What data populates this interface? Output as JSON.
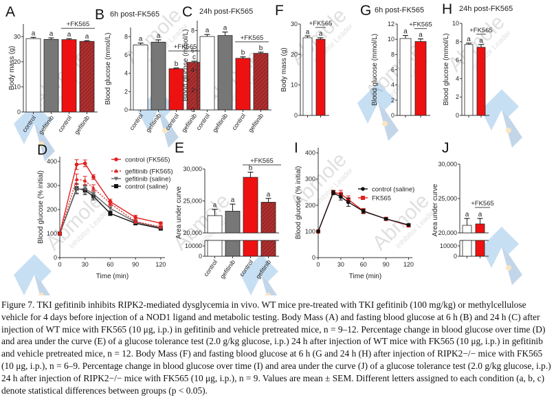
{
  "figure": {
    "colors": {
      "control": "#ffffff",
      "gefitinib": "#777777",
      "fk_control": "#ee1111",
      "fk_gefitinib": "#aa2a2a",
      "red_line": "#e02020",
      "black_line": "#111111",
      "gray_line": "#666666"
    },
    "fk_label": "+FK565",
    "panels_bar": [
      {
        "id": "A",
        "letter": "A",
        "title": "",
        "ylabel": "Body mass (g)",
        "ylim": [
          0,
          35
        ],
        "yticks": [
          0,
          10,
          20,
          30
        ],
        "categories": [
          "control",
          "gefitinib",
          "control",
          "gefitinib"
        ],
        "groups": [
          "control",
          "gefitinib",
          "fk_control",
          "fk_gefitinib"
        ],
        "values": [
          29.2,
          28.9,
          28.8,
          28.1
        ],
        "errors": [
          0.5,
          0.6,
          0.4,
          0.3
        ],
        "letters": [
          "a",
          "a",
          "a",
          "a"
        ],
        "fk_span": [
          2,
          3
        ],
        "xticks_rotated": true
      },
      {
        "id": "B",
        "letter": "B",
        "title": "6h post-FK565",
        "ylabel": "Blood glucose (mmol/L)",
        "ylim": [
          0,
          9
        ],
        "yticks": [
          0,
          2,
          4,
          6,
          8
        ],
        "categories": [
          "control",
          "gefitinib",
          "control",
          "gefitinib"
        ],
        "groups": [
          "control",
          "gefitinib",
          "fk_control",
          "fk_gefitinib"
        ],
        "values": [
          7.1,
          7.4,
          4.5,
          5.2
        ],
        "errors": [
          0.2,
          0.25,
          0.08,
          0.12
        ],
        "letters": [
          "a",
          "a",
          "b",
          "c"
        ],
        "fk_span": [
          2,
          3
        ],
        "xticks_rotated": true
      },
      {
        "id": "C",
        "letter": "C",
        "title": "24h post-FK565",
        "ylabel": "Blood glucose (mmol/L)",
        "ylim": [
          0,
          9
        ],
        "yticks": [
          0,
          2,
          4,
          6,
          8
        ],
        "categories": [
          "control",
          "gefitinib",
          "control",
          "gefitinib"
        ],
        "groups": [
          "control",
          "gefitinib",
          "fk_control",
          "fk_gefitinib"
        ],
        "values": [
          7.4,
          7.5,
          5.2,
          5.7
        ],
        "errors": [
          0.2,
          0.35,
          0.15,
          0.12
        ],
        "letters": [
          "a",
          "a",
          "b",
          "b"
        ],
        "fk_span": [
          2,
          3
        ],
        "xticks_rotated": true
      },
      {
        "id": "F",
        "letter": "F",
        "title": "",
        "ylabel": "Body mass (g)",
        "ylim": [
          0,
          30
        ],
        "yticks": [
          0,
          10,
          20,
          30
        ],
        "categories": [
          "",
          ""
        ],
        "groups": [
          "control",
          "fk_control"
        ],
        "values": [
          25.5,
          25.0
        ],
        "errors": [
          0.6,
          0.5
        ],
        "letters": [
          "a",
          "a"
        ],
        "fk_span": [
          1,
          1
        ],
        "xticks_rotated": false
      },
      {
        "id": "G",
        "letter": "G",
        "title": "6h post-FK565",
        "ylabel": "Blood glucose (mmol/L)",
        "ylim": [
          0,
          12
        ],
        "yticks": [
          0,
          2,
          4,
          6,
          8,
          10,
          12
        ],
        "categories": [
          "",
          ""
        ],
        "groups": [
          "control",
          "fk_control"
        ],
        "values": [
          10.1,
          9.7
        ],
        "errors": [
          0.4,
          0.35
        ],
        "letters": [
          "a",
          "a"
        ],
        "fk_span": [
          1,
          1
        ],
        "xticks_rotated": false
      },
      {
        "id": "H",
        "letter": "H",
        "title": "24h post-FK565",
        "ylabel": "Blood glucose (mmol/L)",
        "ylim": [
          0,
          10
        ],
        "yticks": [
          0,
          2,
          4,
          6,
          8,
          10
        ],
        "categories": [
          "",
          ""
        ],
        "groups": [
          "control",
          "fk_control"
        ],
        "values": [
          7.7,
          7.4
        ],
        "errors": [
          0.15,
          0.3
        ],
        "letters": [
          "a",
          "a"
        ],
        "fk_span": [
          1,
          1
        ],
        "xticks_rotated": false
      }
    ],
    "panels_auc": [
      {
        "id": "E",
        "letter": "E",
        "ylabel": "Area under curve",
        "upper_ylim": [
          20000,
          30000
        ],
        "upper_yticks": [
          20000,
          25000,
          30000
        ],
        "upper_ticklabels": [
          "20,000",
          "25,000",
          "30,000"
        ],
        "lower_ticklabels": [
          "0",
          "10000"
        ],
        "categories": [
          "control",
          "gefitinib",
          "control",
          "gefitinib"
        ],
        "groups": [
          "control",
          "gefitinib",
          "fk_control",
          "fk_gefitinib"
        ],
        "values": [
          22700,
          23400,
          28700,
          24800
        ],
        "errors": [
          1000,
          1100,
          800,
          600
        ],
        "letters": [
          "a",
          "a",
          "b",
          "a"
        ],
        "fk_span": [
          2,
          3
        ],
        "xticks_rotated": true
      },
      {
        "id": "J",
        "letter": "J",
        "ylabel": "Area under curve",
        "upper_ylim": [
          20000,
          30000
        ],
        "upper_yticks": [
          20000,
          25000,
          30000
        ],
        "upper_ticklabels": [
          "20,000",
          "25,000",
          "30,000"
        ],
        "lower_ticklabels": [
          "0",
          "10000"
        ],
        "categories": [
          "",
          ""
        ],
        "groups": [
          "control",
          "fk_control"
        ],
        "values": [
          21100,
          21300
        ],
        "errors": [
          1000,
          800
        ],
        "letters": [
          "a",
          "a"
        ],
        "fk_span": [
          1,
          1
        ],
        "xticks_rotated": false
      }
    ],
    "panels_line": [
      {
        "id": "D",
        "letter": "D",
        "ylabel": "Blood glucose (% initial)",
        "xlabel": "Time (min)",
        "xlim": [
          0,
          125
        ],
        "ylim": [
          0,
          420
        ],
        "xticks": [
          0,
          30,
          60,
          90,
          120
        ],
        "yticks": [
          0,
          100,
          200,
          300,
          400
        ],
        "x": [
          0,
          20,
          30,
          40,
          60,
          90,
          120
        ],
        "series": [
          {
            "name": "control (FK565)",
            "style": "red_solid_circle",
            "values": [
              100,
              387,
              392,
              335,
              233,
              167,
              143
            ],
            "errors": [
              0,
              20,
              14,
              10,
              10,
              9,
              5
            ]
          },
          {
            "name": "gefitinib (FK565)",
            "style": "red_dotted_triangle",
            "values": [
              100,
              326,
              320,
              289,
              225,
              150,
              128
            ],
            "errors": [
              0,
              22,
              18,
              14,
              10,
              6,
              5
            ]
          },
          {
            "name": "gefitinib (saline)",
            "style": "gray_solid_down",
            "values": [
              100,
              285,
              286,
              265,
              205,
              148,
              125
            ],
            "errors": [
              0,
              20,
              18,
              14,
              10,
              6,
              4
            ]
          },
          {
            "name": "control (saline)",
            "style": "black_solid_square",
            "values": [
              100,
              288,
              280,
              255,
              184,
              143,
              121
            ],
            "errors": [
              0,
              20,
              18,
              15,
              9,
              5,
              4
            ]
          }
        ],
        "legend_position": "top-right"
      },
      {
        "id": "I",
        "letter": "I",
        "ylabel": "Blood glucose (% initial)",
        "xlabel": "Time (min)",
        "xlim": [
          0,
          125
        ],
        "ylim": [
          0,
          420
        ],
        "xticks": [
          0,
          30,
          60,
          90,
          120
        ],
        "yticks": [
          0,
          100,
          200,
          300,
          400
        ],
        "x": [
          0,
          20,
          30,
          40,
          60,
          90,
          120
        ],
        "series": [
          {
            "name": "control (saline)",
            "style": "black_solid_circle",
            "values": [
              100,
              248,
              232,
              212,
              177,
              148,
              125
            ],
            "errors": [
              0,
              8,
              12,
              16,
              8,
              4,
              5
            ]
          },
          {
            "name": "FK565",
            "style": "red_solid_square",
            "values": [
              100,
              250,
              243,
              222,
              178,
              148,
              123
            ],
            "errors": [
              0,
              7,
              14,
              14,
              10,
              4,
              4
            ]
          }
        ],
        "legend_position": "center-right"
      }
    ]
  },
  "chart_data": [
    {
      "type": "bar",
      "panel": "A",
      "title": "",
      "ylabel": "Body mass (g)",
      "ylim": [
        0,
        35
      ],
      "categories": [
        "control",
        "gefitinib",
        "control +FK565",
        "gefitinib +FK565"
      ],
      "values": [
        29.2,
        28.9,
        28.8,
        28.1
      ],
      "errors": [
        0.5,
        0.6,
        0.4,
        0.3
      ],
      "significance": [
        "a",
        "a",
        "a",
        "a"
      ]
    },
    {
      "type": "bar",
      "panel": "B",
      "title": "6h post-FK565",
      "ylabel": "Blood glucose (mmol/L)",
      "ylim": [
        0,
        9
      ],
      "categories": [
        "control",
        "gefitinib",
        "control +FK565",
        "gefitinib +FK565"
      ],
      "values": [
        7.1,
        7.4,
        4.5,
        5.2
      ],
      "errors": [
        0.2,
        0.25,
        0.08,
        0.12
      ],
      "significance": [
        "a",
        "a",
        "b",
        "c"
      ]
    },
    {
      "type": "bar",
      "panel": "C",
      "title": "24h post-FK565",
      "ylabel": "Blood glucose (mmol/L)",
      "ylim": [
        0,
        9
      ],
      "categories": [
        "control",
        "gefitinib",
        "control +FK565",
        "gefitinib +FK565"
      ],
      "values": [
        7.4,
        7.5,
        5.2,
        5.7
      ],
      "errors": [
        0.2,
        0.35,
        0.15,
        0.12
      ],
      "significance": [
        "a",
        "a",
        "b",
        "b"
      ]
    },
    {
      "type": "line",
      "panel": "D",
      "xlabel": "Time (min)",
      "ylabel": "Blood glucose (% initial)",
      "xlim": [
        0,
        125
      ],
      "ylim": [
        0,
        400
      ],
      "x": [
        0,
        20,
        30,
        40,
        60,
        90,
        120
      ],
      "series": [
        {
          "name": "control (FK565)",
          "values": [
            100,
            387,
            392,
            335,
            233,
            167,
            143
          ]
        },
        {
          "name": "gefitinib (FK565)",
          "values": [
            100,
            326,
            320,
            289,
            225,
            150,
            128
          ]
        },
        {
          "name": "gefitinib (saline)",
          "values": [
            100,
            285,
            286,
            265,
            205,
            148,
            125
          ]
        },
        {
          "name": "control (saline)",
          "values": [
            100,
            288,
            280,
            255,
            184,
            143,
            121
          ]
        }
      ],
      "legend": "top-right"
    },
    {
      "type": "bar",
      "panel": "E",
      "ylabel": "Area under curve",
      "ylim": [
        0,
        30000
      ],
      "axis_break": [
        10000,
        20000
      ],
      "categories": [
        "control",
        "gefitinib",
        "control +FK565",
        "gefitinib +FK565"
      ],
      "values": [
        22700,
        23400,
        28700,
        24800
      ],
      "errors": [
        1000,
        1100,
        800,
        600
      ],
      "significance": [
        "a",
        "a",
        "b",
        "a"
      ]
    },
    {
      "type": "bar",
      "panel": "F",
      "ylabel": "Body mass (g)",
      "ylim": [
        0,
        30
      ],
      "categories": [
        "control",
        "+FK565"
      ],
      "values": [
        25.5,
        25.0
      ],
      "errors": [
        0.6,
        0.5
      ],
      "significance": [
        "a",
        "a"
      ]
    },
    {
      "type": "bar",
      "panel": "G",
      "title": "6h post-FK565",
      "ylabel": "Blood glucose (mmol/L)",
      "ylim": [
        0,
        12
      ],
      "categories": [
        "control",
        "+FK565"
      ],
      "values": [
        10.1,
        9.7
      ],
      "errors": [
        0.4,
        0.35
      ],
      "significance": [
        "a",
        "a"
      ]
    },
    {
      "type": "bar",
      "panel": "H",
      "title": "24h post-FK565",
      "ylabel": "Blood glucose (mmol/L)",
      "ylim": [
        0,
        10
      ],
      "categories": [
        "control",
        "+FK565"
      ],
      "values": [
        7.7,
        7.4
      ],
      "errors": [
        0.15,
        0.3
      ],
      "significance": [
        "a",
        "a"
      ]
    },
    {
      "type": "line",
      "panel": "I",
      "xlabel": "Time (min)",
      "ylabel": "Blood glucose (% initial)",
      "xlim": [
        0,
        125
      ],
      "ylim": [
        0,
        400
      ],
      "x": [
        0,
        20,
        30,
        40,
        60,
        90,
        120
      ],
      "series": [
        {
          "name": "control (saline)",
          "values": [
            100,
            248,
            232,
            212,
            177,
            148,
            125
          ]
        },
        {
          "name": "FK565",
          "values": [
            100,
            250,
            243,
            222,
            178,
            148,
            123
          ]
        }
      ],
      "legend": "center-right"
    },
    {
      "type": "bar",
      "panel": "J",
      "ylabel": "Area under curve",
      "ylim": [
        0,
        30000
      ],
      "axis_break": [
        10000,
        20000
      ],
      "categories": [
        "control",
        "+FK565"
      ],
      "values": [
        21100,
        21300
      ],
      "errors": [
        1000,
        800
      ],
      "significance": [
        "a",
        "a"
      ]
    }
  ],
  "caption": "Figure 7. TKI gefitinib inhibits RIPK2-mediated dysglycemia in vivo. WT mice pre-treated with TKI gefitinib (100 mg/kg) or methylcellulose vehicle for 4 days before injection of a NOD1 ligand and metabolic testing. Body Mass (A) and fasting blood glucose at 6 h (B) and 24 h (C) after injection of WT mice with FK565 (10 μg, i.p.) in gefitinib and vehicle pretreated mice, n = 9–12. Percentage change in blood glucose over time (D) and area under the curve (E) of a glucose tolerance test (2.0 g/kg glucose, i.p.) 24 h after injection of WT mice with FK565 (10 μg, i.p.) in gefitinib and vehicle pretreated mice, n = 12. Body Mass (F) and fasting blood glucose at 6 h (G and 24 h (H) after injection of RIPK2−/− mice with FK565 (10 μg, i.p.), n = 6–9. Percentage change in blood glucose over time (I) and area under the curve (J) of a glucose tolerance test (2.0 g/kg glucose, i.p.) 24 h after injection of RIPK2−/− mice with FK565 (10 μg, i.p.), n = 9. Values are mean ± SEM. Different letters assigned to each condition (a, b, c) denote statistical differences between groups (p < 0.05).",
  "watermark": {
    "brand": "Abmole",
    "tagline": "Inhibitor Leader"
  }
}
